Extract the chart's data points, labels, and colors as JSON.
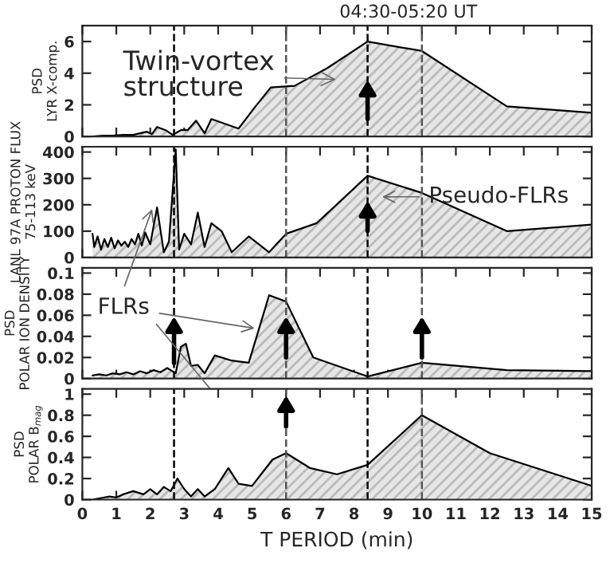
{
  "chart_data": [
    {
      "type": "area",
      "ylabel": "PSD\nLYR X-comp.",
      "xlim": [
        0,
        15
      ],
      "xticks": [
        0,
        1,
        2,
        3,
        4,
        5,
        6,
        7,
        8,
        9,
        10,
        11,
        12,
        13,
        14,
        15
      ],
      "ylim": [
        0,
        7
      ],
      "yticks": [
        0,
        2,
        4,
        6
      ],
      "tick_labels": "y",
      "series": [
        {
          "color": "#000000",
          "x": [
            0.3,
            0.6,
            0.9,
            1.2,
            1.5,
            1.7,
            1.9,
            2.05,
            2.2,
            2.45,
            2.66,
            2.9,
            3.1,
            3.35,
            3.6,
            3.8,
            4.6,
            5.1,
            5.55,
            6.25,
            7.2,
            8.4,
            10,
            12.5,
            15
          ],
          "values": [
            0,
            0.05,
            0.05,
            0.1,
            0.1,
            0.2,
            0.3,
            0.15,
            0.6,
            0.4,
            0.1,
            0.4,
            0.4,
            1.0,
            0.2,
            1.1,
            0.5,
            1.9,
            3.1,
            3.2,
            4.3,
            6.0,
            5.4,
            1.9,
            1.5
          ]
        }
      ],
      "ref_lines": [
        {
          "axis": "x",
          "value": 2.7,
          "color": "#000000",
          "line_style": "dashed"
        },
        {
          "axis": "x",
          "value": 6.0,
          "color": "#555555",
          "line_style": "dashed"
        },
        {
          "axis": "x",
          "value": 8.4,
          "color": "#000000",
          "line_style": "dashed"
        },
        {
          "axis": "x",
          "value": 10.0,
          "color": "#555555",
          "line_style": "dashed"
        }
      ],
      "annotations": [
        "04:30-05:20 UT",
        "Twin-vortex\nstructure"
      ]
    },
    {
      "type": "area",
      "ylabel": "LANL 97A PROTON FLUX\n75-113 keV",
      "xlim": [
        0,
        15
      ],
      "xticks": [
        0,
        1,
        2,
        3,
        4,
        5,
        6,
        7,
        8,
        9,
        10,
        11,
        12,
        13,
        14,
        15
      ],
      "ylim": [
        0,
        420
      ],
      "yticks": [
        0,
        100,
        200,
        300,
        400
      ],
      "tick_labels": "y",
      "series": [
        {
          "color": "#000000",
          "x": [
            0.3,
            0.35,
            0.45,
            0.55,
            0.65,
            0.75,
            0.85,
            0.95,
            1.05,
            1.15,
            1.25,
            1.35,
            1.45,
            1.55,
            1.65,
            1.75,
            1.85,
            2.0,
            2.2,
            2.4,
            2.55,
            2.75,
            2.85,
            3.0,
            3.2,
            3.4,
            3.6,
            3.8,
            4.1,
            4.4,
            4.9,
            5.5,
            6.0,
            6.9,
            8.4,
            10,
            12.5,
            15
          ],
          "values": [
            90,
            40,
            80,
            30,
            70,
            40,
            75,
            35,
            65,
            45,
            60,
            40,
            70,
            50,
            90,
            45,
            95,
            50,
            190,
            20,
            60,
            410,
            30,
            90,
            50,
            170,
            40,
            130,
            100,
            20,
            80,
            20,
            90,
            130,
            310,
            245,
            100,
            125
          ]
        }
      ],
      "ref_lines": [
        {
          "axis": "x",
          "value": 2.7,
          "color": "#000000",
          "line_style": "dashed"
        },
        {
          "axis": "x",
          "value": 6.0,
          "color": "#555555",
          "line_style": "dashed"
        },
        {
          "axis": "x",
          "value": 8.4,
          "color": "#000000",
          "line_style": "dashed"
        },
        {
          "axis": "x",
          "value": 10.0,
          "color": "#555555",
          "line_style": "dashed"
        }
      ],
      "annotations": [
        "Pseudo-FLRs"
      ]
    },
    {
      "type": "area",
      "ylabel": "PSD\nPOLAR ION DENSITY",
      "xlim": [
        0,
        15
      ],
      "xticks": [
        0,
        1,
        2,
        3,
        4,
        5,
        6,
        7,
        8,
        9,
        10,
        11,
        12,
        13,
        14,
        15
      ],
      "ylim": [
        0,
        0.105
      ],
      "yticks": [
        0,
        0.02,
        0.04,
        0.06,
        0.08,
        0.1
      ],
      "tick_labels": "y",
      "series": [
        {
          "color": "#000000",
          "x": [
            0.3,
            0.5,
            0.7,
            0.9,
            1.1,
            1.3,
            1.5,
            1.7,
            1.9,
            2.1,
            2.3,
            2.5,
            2.6,
            2.75,
            2.9,
            3.05,
            3.2,
            3.4,
            3.6,
            3.9,
            4.4,
            4.9,
            5.5,
            6.0,
            6.8,
            8.4,
            10,
            12.5,
            15
          ],
          "values": [
            0.003,
            0.004,
            0.003,
            0.005,
            0.004,
            0.006,
            0.004,
            0.007,
            0.005,
            0.008,
            0.006,
            0.01,
            0.008,
            0.005,
            0.03,
            0.033,
            0.012,
            0.013,
            0.005,
            0.022,
            0.017,
            0.015,
            0.079,
            0.073,
            0.02,
            0.002,
            0.015,
            0.008,
            0.007
          ]
        }
      ],
      "ref_lines": [
        {
          "axis": "x",
          "value": 2.7,
          "color": "#000000",
          "line_style": "dashed"
        },
        {
          "axis": "x",
          "value": 6.0,
          "color": "#555555",
          "line_style": "dashed"
        },
        {
          "axis": "x",
          "value": 8.4,
          "color": "#000000",
          "line_style": "dashed"
        },
        {
          "axis": "x",
          "value": 10.0,
          "color": "#555555",
          "line_style": "dashed"
        }
      ],
      "annotations": [
        {
          "text": "FLRs",
          "x": 5.2,
          "y": 0.047
        }
      ]
    },
    {
      "type": "area",
      "xlabel": "T PERIOD (min)",
      "ylabel": "PSD\nPOLAR B$_{mag}$",
      "xlim": [
        0,
        15
      ],
      "xticks": [
        0,
        1,
        2,
        3,
        4,
        5,
        6,
        7,
        8,
        9,
        10,
        11,
        12,
        13,
        14,
        15
      ],
      "ylim": [
        0,
        1.05
      ],
      "yticks": [
        0,
        0.2,
        0.4,
        0.6,
        0.8,
        1
      ],
      "series": [
        {
          "color": "#000000",
          "x": [
            0.3,
            0.8,
            1.0,
            1.2,
            1.5,
            1.8,
            2.0,
            2.2,
            2.4,
            2.6,
            2.8,
            3.0,
            3.2,
            3.4,
            3.6,
            3.9,
            4.3,
            4.6,
            5.0,
            5.6,
            6.0,
            6.7,
            7.5,
            8.4,
            10,
            12,
            15
          ],
          "values": [
            0,
            0.03,
            0.02,
            0.05,
            0.08,
            0.05,
            0.1,
            0.05,
            0.12,
            0.08,
            0.2,
            0.1,
            0.03,
            0.1,
            0.03,
            0.1,
            0.3,
            0.15,
            0.13,
            0.38,
            0.44,
            0.3,
            0.24,
            0.33,
            0.8,
            0.44,
            0.13
          ]
        }
      ],
      "ref_lines": [
        {
          "axis": "x",
          "value": 2.7,
          "color": "#000000",
          "line_style": "dashed"
        },
        {
          "axis": "x",
          "value": 6.0,
          "color": "#555555",
          "line_style": "dashed"
        },
        {
          "axis": "x",
          "value": 8.4,
          "color": "#000000",
          "line_style": "dashed"
        },
        {
          "axis": "x",
          "value": 10.0,
          "color": "#555555",
          "line_style": "dashed"
        }
      ]
    }
  ]
}
